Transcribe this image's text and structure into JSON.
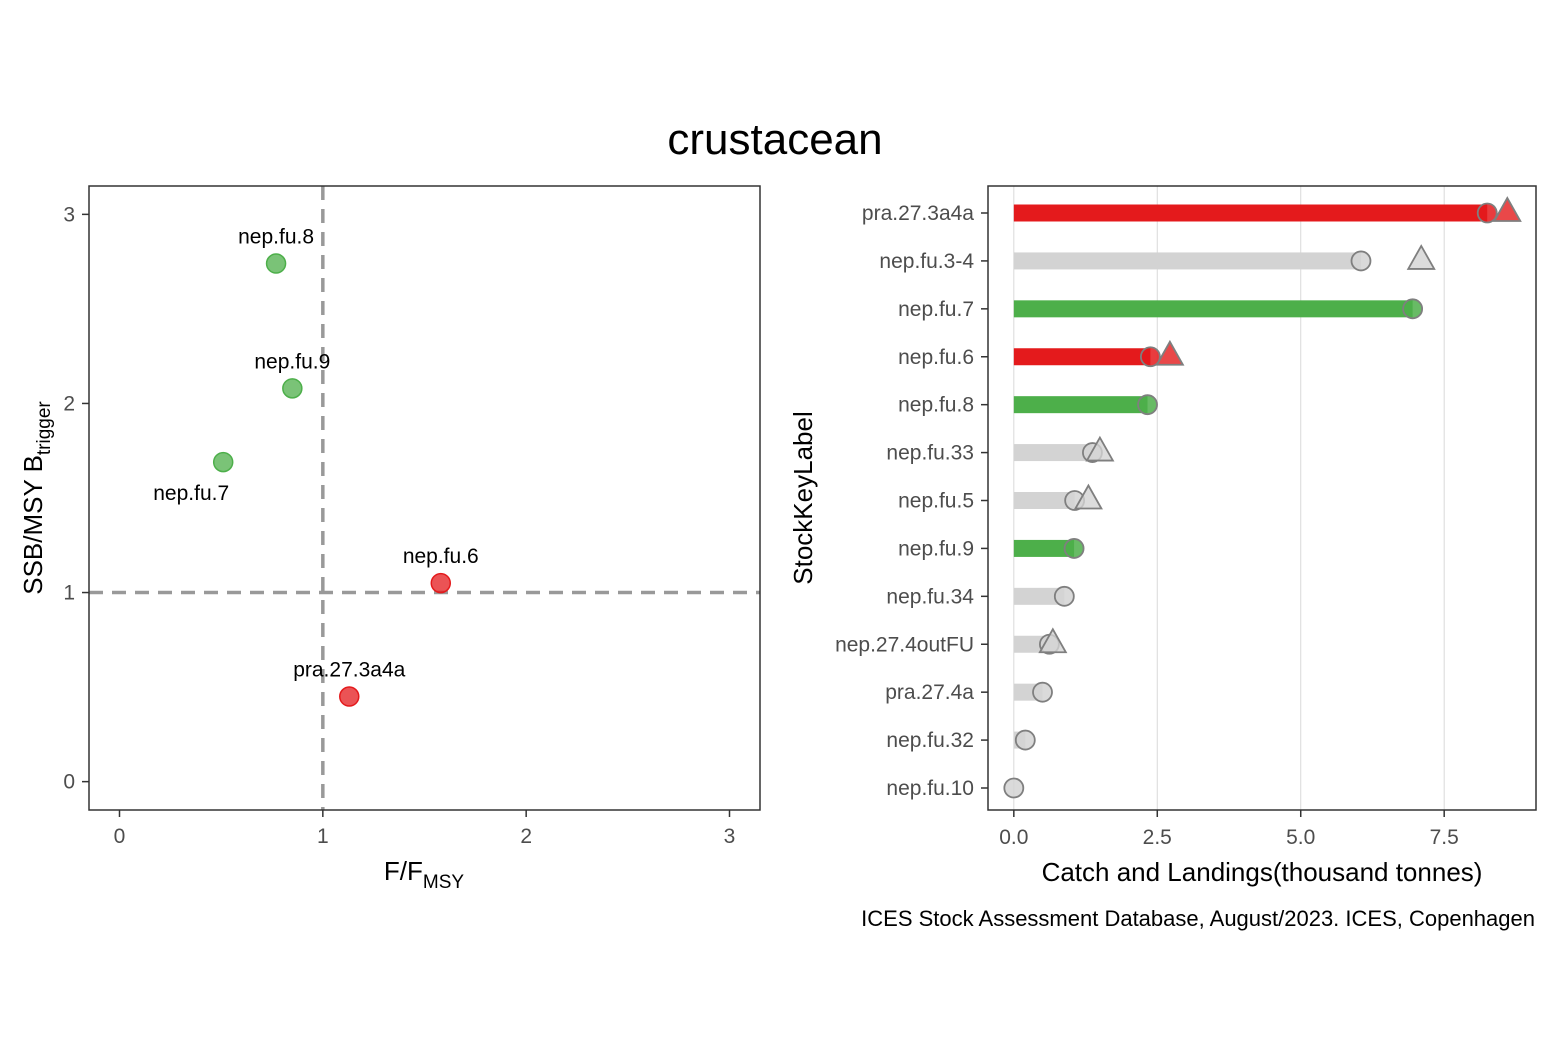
{
  "title": "crustacean",
  "caption": "ICES Stock Assessment Database, August/2023. ICES, Copenhagen",
  "colors": {
    "red": "#e41a1c",
    "green": "#4daf4a",
    "grey": "#d3d3d3",
    "dashed": "#999999",
    "point_outline": "#7f7f7f"
  },
  "chart_data": [
    {
      "type": "scatter",
      "xlabel_main": "F/F",
      "xlabel_sub": "MSY",
      "ylabel_main": "SSB/MSY B",
      "ylabel_sub": "trigger",
      "xlim": [
        -0.15,
        3.15
      ],
      "ylim": [
        -0.15,
        3.15
      ],
      "xticks": [
        0,
        1,
        2,
        3
      ],
      "yticks": [
        0,
        1,
        2,
        3
      ],
      "reference_lines": {
        "x": 1,
        "y": 1
      },
      "grid": false,
      "points": [
        {
          "label": "nep.fu.8",
          "x": 0.77,
          "y": 2.74,
          "status": "green",
          "label_pos": "above"
        },
        {
          "label": "nep.fu.9",
          "x": 0.85,
          "y": 2.08,
          "status": "green",
          "label_pos": "above"
        },
        {
          "label": "nep.fu.7",
          "x": 0.51,
          "y": 1.69,
          "status": "green",
          "label_pos": "below-left"
        },
        {
          "label": "nep.fu.6",
          "x": 1.58,
          "y": 1.05,
          "status": "red",
          "label_pos": "above"
        },
        {
          "label": "pra.27.3a4a",
          "x": 1.13,
          "y": 0.45,
          "status": "red",
          "label_pos": "above"
        }
      ]
    },
    {
      "type": "bar",
      "orientation": "horizontal",
      "xlabel": "Catch and Landings(thousand tonnes)",
      "ylabel": "StockKeyLabel",
      "xlim": [
        -0.45,
        9.1
      ],
      "xticks": [
        0.0,
        2.5,
        5.0,
        7.5
      ],
      "xtick_labels": [
        "0.0",
        "2.5",
        "5.0",
        "7.5"
      ],
      "grid": "vertical",
      "stocks": [
        {
          "label": "pra.27.3a4a",
          "landings": 8.25,
          "catches": 8.6,
          "status": "red"
        },
        {
          "label": "nep.fu.3-4",
          "landings": 6.05,
          "catches": 7.1,
          "status": "grey"
        },
        {
          "label": "nep.fu.7",
          "landings": 6.95,
          "catches": null,
          "status": "green"
        },
        {
          "label": "nep.fu.6",
          "landings": 2.38,
          "catches": 2.72,
          "status": "red"
        },
        {
          "label": "nep.fu.8",
          "landings": 2.33,
          "catches": null,
          "status": "green"
        },
        {
          "label": "nep.fu.33",
          "landings": 1.37,
          "catches": 1.5,
          "status": "grey"
        },
        {
          "label": "nep.fu.5",
          "landings": 1.06,
          "catches": 1.3,
          "status": "grey"
        },
        {
          "label": "nep.fu.9",
          "landings": 1.05,
          "catches": null,
          "status": "green"
        },
        {
          "label": "nep.fu.34",
          "landings": 0.88,
          "catches": null,
          "status": "grey"
        },
        {
          "label": "nep.27.4outFU",
          "landings": 0.62,
          "catches": 0.68,
          "status": "grey"
        },
        {
          "label": "pra.27.4a",
          "landings": 0.5,
          "catches": null,
          "status": "grey"
        },
        {
          "label": "nep.fu.32",
          "landings": 0.2,
          "catches": null,
          "status": "grey"
        },
        {
          "label": "nep.fu.10",
          "landings": 0.0,
          "catches": null,
          "status": "grey"
        }
      ]
    }
  ]
}
